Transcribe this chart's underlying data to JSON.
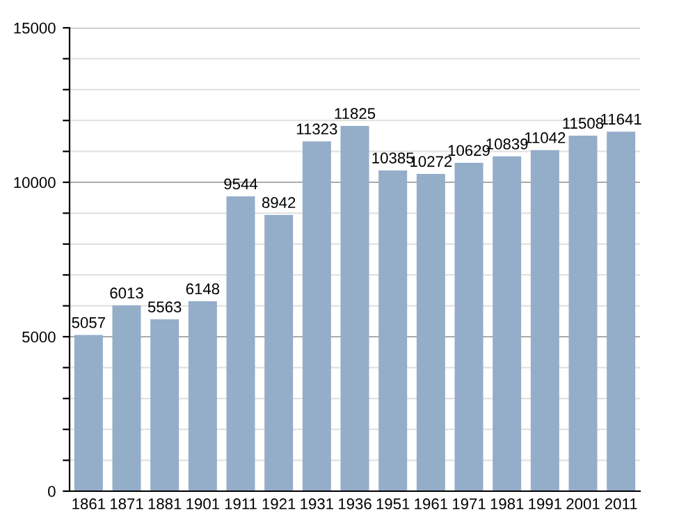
{
  "chart_data": {
    "type": "bar",
    "categories": [
      "1861",
      "1871",
      "1881",
      "1901",
      "1911",
      "1921",
      "1931",
      "1936",
      "1951",
      "1961",
      "1971",
      "1981",
      "1991",
      "2001",
      "2011"
    ],
    "values": [
      5057,
      6013,
      5563,
      6148,
      9544,
      8942,
      11323,
      11825,
      10385,
      10272,
      10629,
      10839,
      11042,
      11508,
      11641
    ],
    "color": "#94adc9",
    "ylim": [
      0,
      15000
    ],
    "yticks": [
      0,
      {
        "value": 1000,
        "label": null
      },
      {
        "value": 2000,
        "label": null
      },
      {
        "value": 3000,
        "label": null
      },
      {
        "value": 4000,
        "label": null
      },
      5000,
      {
        "value": 6000,
        "label": null
      },
      {
        "value": 7000,
        "label": null
      },
      {
        "value": 8000,
        "label": null
      },
      {
        "value": 9000,
        "label": null
      },
      10000,
      {
        "value": 11000,
        "label": null
      },
      {
        "value": 12000,
        "label": null
      },
      {
        "value": 13000,
        "label": null
      },
      {
        "value": 14000,
        "label": null
      },
      15000
    ],
    "grid": "y",
    "data_labels": true
  }
}
